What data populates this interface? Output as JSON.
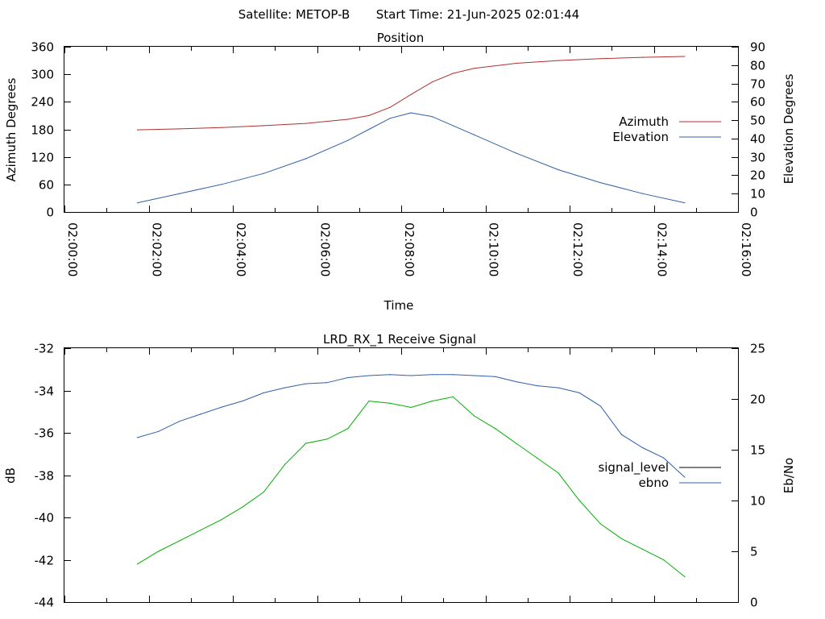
{
  "header": {
    "satellite": "Satellite: METOP-B",
    "start_time": "Start Time: 21-Jun-2025 02:01:44"
  },
  "chart_data": [
    {
      "type": "line",
      "title": "Position",
      "xlabel": "Time",
      "ylabel": "Azimuth Degrees",
      "y2label": "Elevation Degrees",
      "x_ticks": [
        "02:00:00",
        "02:02:00",
        "02:04:00",
        "02:06:00",
        "02:08:00",
        "02:10:00",
        "02:12:00",
        "02:14:00",
        "02:16:00"
      ],
      "xlim": [
        "02:00:00",
        "02:16:00"
      ],
      "ylim": [
        0,
        360
      ],
      "y_ticks": [
        "0",
        "60",
        "120",
        "180",
        "240",
        "300",
        "360"
      ],
      "y2lim": [
        0,
        90
      ],
      "y2_ticks": [
        "0",
        "10",
        "20",
        "30",
        "40",
        "50",
        "60",
        "70",
        "80",
        "90"
      ],
      "grid": false,
      "legend": "right",
      "series": [
        {
          "name": "Azimuth",
          "axis": "left",
          "color": "#b03030",
          "x": [
            "02:01:44",
            "02:02:44",
            "02:03:44",
            "02:04:44",
            "02:05:44",
            "02:06:44",
            "02:07:14",
            "02:07:44",
            "02:08:14",
            "02:08:44",
            "02:09:14",
            "02:09:44",
            "02:10:44",
            "02:11:44",
            "02:12:44",
            "02:13:44",
            "02:14:44"
          ],
          "values": [
            179,
            181,
            184,
            188,
            193,
            202,
            210,
            228,
            256,
            283,
            302,
            313,
            324,
            330,
            334,
            337,
            339
          ]
        },
        {
          "name": "Elevation",
          "axis": "right",
          "color": "#3060a8",
          "x": [
            "02:01:44",
            "02:02:44",
            "02:03:44",
            "02:04:44",
            "02:05:44",
            "02:06:44",
            "02:07:14",
            "02:07:44",
            "02:08:14",
            "02:08:44",
            "02:09:14",
            "02:09:44",
            "02:10:44",
            "02:11:44",
            "02:12:44",
            "02:13:44",
            "02:14:44"
          ],
          "values": [
            5,
            10,
            15,
            21,
            29,
            39,
            45,
            51,
            54,
            52,
            47,
            42,
            32,
            23,
            16,
            10,
            5
          ]
        }
      ]
    },
    {
      "type": "line",
      "title": "LRD_RX_1 Receive Signal",
      "xlabel": "",
      "ylabel": "dB",
      "y2label": "Eb/No",
      "xlim": [
        "02:00:00",
        "02:16:00"
      ],
      "ylim": [
        -44,
        -32
      ],
      "y_ticks": [
        "-44",
        "-42",
        "-40",
        "-38",
        "-36",
        "-34",
        "-32"
      ],
      "y2lim": [
        0,
        25
      ],
      "y2_ticks": [
        "0",
        "5",
        "10",
        "15",
        "20",
        "25"
      ],
      "grid": false,
      "legend": "right",
      "series": [
        {
          "name": "signal_level",
          "axis": "left",
          "color": "#00b000",
          "x": [
            "02:01:44",
            "02:02:14",
            "02:02:44",
            "02:03:14",
            "02:03:44",
            "02:04:14",
            "02:04:44",
            "02:05:14",
            "02:05:44",
            "02:06:14",
            "02:06:44",
            "02:07:14",
            "02:07:44",
            "02:08:14",
            "02:08:44",
            "02:09:14",
            "02:09:44",
            "02:10:14",
            "02:10:44",
            "02:11:14",
            "02:11:44",
            "02:12:14",
            "02:12:44",
            "02:13:14",
            "02:13:44",
            "02:14:14",
            "02:14:44"
          ],
          "values": [
            -42.2,
            -41.6,
            -41.1,
            -40.6,
            -40.1,
            -39.5,
            -38.8,
            -37.5,
            -36.5,
            -36.3,
            -35.8,
            -34.5,
            -34.6,
            -34.8,
            -34.5,
            -34.3,
            -35.2,
            -35.8,
            -36.5,
            -37.2,
            -37.9,
            -39.2,
            -40.3,
            -41.0,
            -41.5,
            -42.0,
            -42.8
          ]
        },
        {
          "name": "ebno",
          "axis": "right",
          "color": "#3060a8",
          "x": [
            "02:01:44",
            "02:02:14",
            "02:02:44",
            "02:03:14",
            "02:03:44",
            "02:04:14",
            "02:04:44",
            "02:05:14",
            "02:05:44",
            "02:06:14",
            "02:06:44",
            "02:07:14",
            "02:07:44",
            "02:08:14",
            "02:08:44",
            "02:09:14",
            "02:09:44",
            "02:10:14",
            "02:10:44",
            "02:11:14",
            "02:11:44",
            "02:12:14",
            "02:12:44",
            "02:13:14",
            "02:13:44",
            "02:14:14",
            "02:14:44"
          ],
          "values": [
            16.2,
            16.8,
            17.8,
            18.5,
            19.2,
            19.8,
            20.6,
            21.1,
            21.5,
            21.6,
            22.1,
            22.3,
            22.4,
            22.3,
            22.4,
            22.4,
            22.3,
            22.2,
            21.7,
            21.3,
            21.1,
            20.6,
            19.3,
            16.5,
            15.2,
            14.2,
            12.3
          ]
        }
      ]
    }
  ]
}
